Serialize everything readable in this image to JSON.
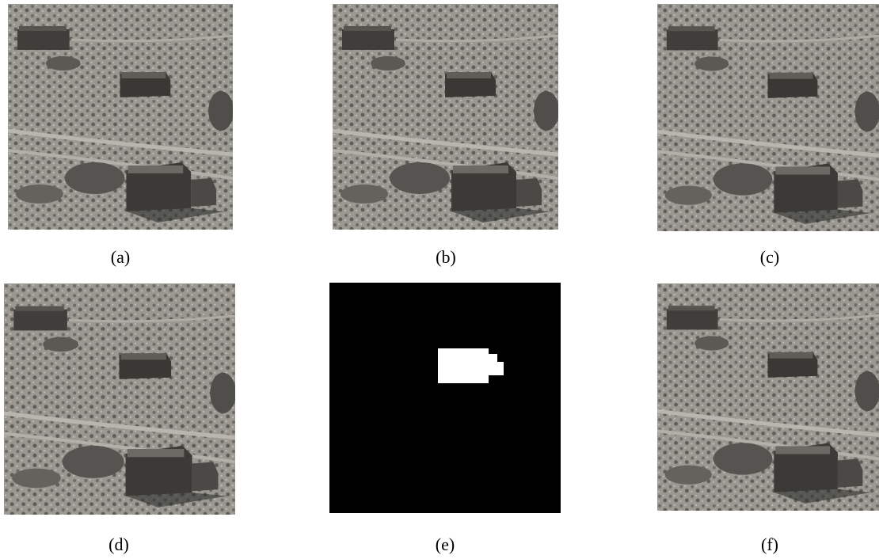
{
  "figure": {
    "panels": [
      {
        "label": "(a)"
      },
      {
        "label": "(b)"
      },
      {
        "label": "(c)"
      },
      {
        "label": "(d)"
      },
      {
        "label": "(e)"
      },
      {
        "label": "(f)"
      }
    ]
  }
}
